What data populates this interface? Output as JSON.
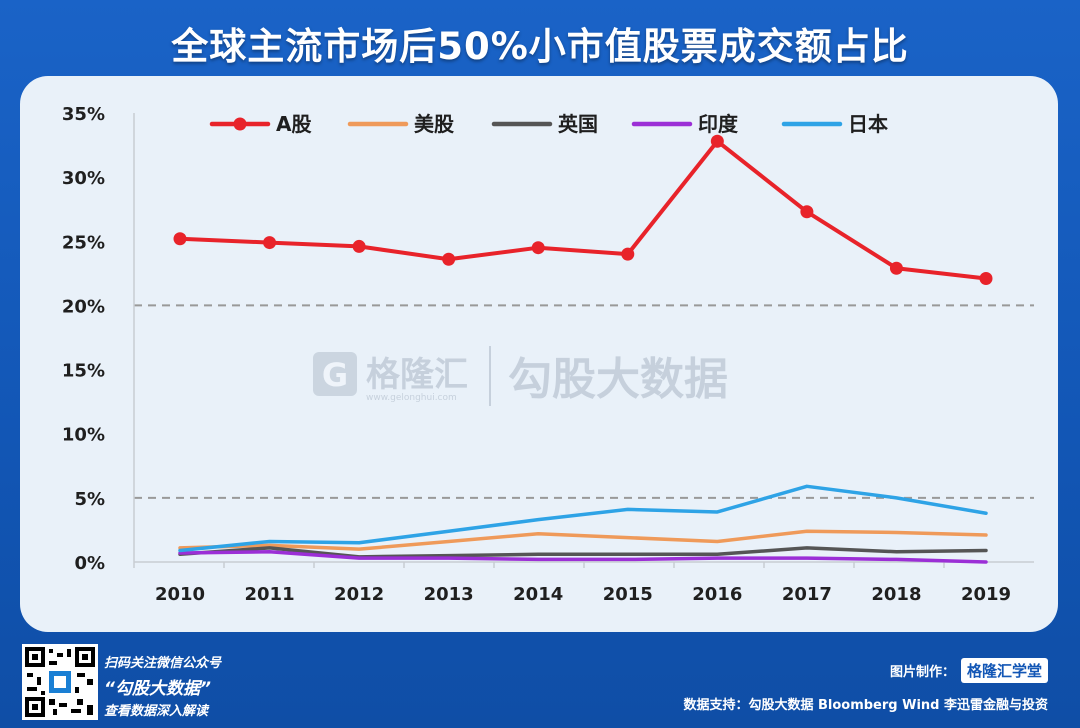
{
  "title": "全球主流市场后50%小市值股票成交额占比",
  "footer": {
    "line1": "扫码关注微信公众号",
    "line2": "“勾股大数据”",
    "line3": "查看数据深入解读",
    "maker_label": "图片制作：",
    "maker_logo": "格隆汇学堂",
    "source": "数据支持：勾股大数据 Bloomberg Wind 李迅雷金融与投资"
  },
  "watermark": {
    "brand": "格隆汇",
    "url": "www.gelonghui.com",
    "text": "勾股大数据"
  },
  "colors": {
    "A股": "#e8232a",
    "美股": "#ef9a5a",
    "英国": "#555555",
    "印度": "#9b2fd6",
    "日本": "#2ea3e6"
  },
  "chart_data": {
    "type": "line",
    "title": "全球主流市场后50%小市值股票成交额占比",
    "x": [
      "2010",
      "2011",
      "2012",
      "2013",
      "2014",
      "2015",
      "2016",
      "2017",
      "2018",
      "2019"
    ],
    "ylim": [
      0,
      35
    ],
    "yticks": [
      "0%",
      "5%",
      "10%",
      "15%",
      "20%",
      "25%",
      "30%",
      "35%"
    ],
    "reference_lines": [
      20,
      5
    ],
    "legend_position": "top",
    "series": [
      {
        "name": "A股",
        "values": [
          25.2,
          24.9,
          24.6,
          23.6,
          24.5,
          24.0,
          32.8,
          27.3,
          22.9,
          22.1
        ],
        "markers": true
      },
      {
        "name": "美股",
        "values": [
          1.1,
          1.3,
          1.0,
          1.6,
          2.2,
          1.9,
          1.6,
          2.4,
          2.3,
          2.1
        ],
        "markers": false
      },
      {
        "name": "英国",
        "values": [
          0.6,
          1.1,
          0.4,
          0.5,
          0.6,
          0.6,
          0.6,
          1.1,
          0.8,
          0.9
        ],
        "markers": false
      },
      {
        "name": "印度",
        "values": [
          0.7,
          0.8,
          0.3,
          0.3,
          0.2,
          0.2,
          0.3,
          0.3,
          0.2,
          0.0
        ],
        "markers": false
      },
      {
        "name": "日本",
        "values": [
          0.9,
          1.6,
          1.5,
          2.4,
          3.3,
          4.1,
          3.9,
          5.9,
          5.0,
          3.8
        ],
        "markers": false
      }
    ]
  }
}
